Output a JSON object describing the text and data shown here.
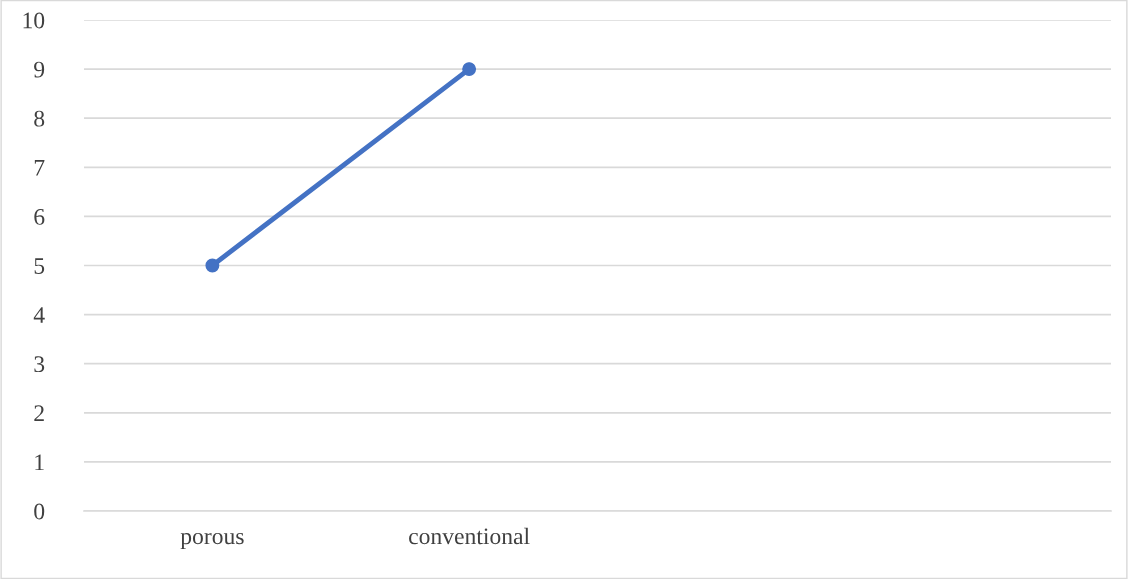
{
  "chart_data": {
    "type": "line",
    "categories": [
      "porous",
      "conventional",
      null,
      null
    ],
    "series": [
      {
        "color": "#4472c4",
        "values": [
          5,
          9,
          null,
          null
        ]
      }
    ],
    "ylim": [
      0,
      10
    ],
    "yticks": [
      0,
      1,
      2,
      3,
      4,
      5,
      6,
      7,
      8,
      9,
      10
    ],
    "grid": "y",
    "marker": "circle",
    "line_style": "solid"
  }
}
